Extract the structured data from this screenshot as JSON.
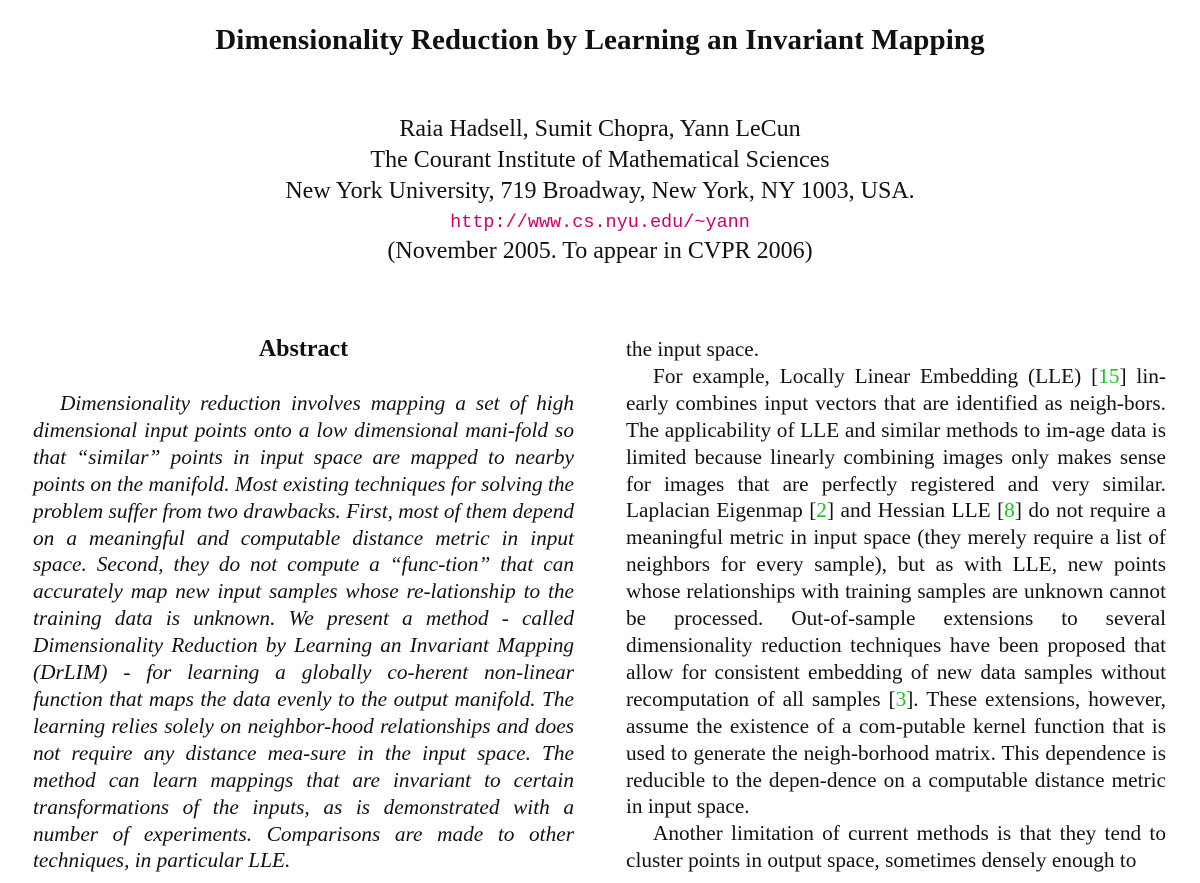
{
  "paper": {
    "title": "Dimensionality Reduction by Learning an Invariant Mapping",
    "authors": "Raia Hadsell, Sumit Chopra, Yann LeCun",
    "affiliation_1": "The Courant Institute of Mathematical Sciences",
    "affiliation_2": "New York University, 719 Broadway, New York, NY 1003, USA.",
    "url": "http://www.cs.nyu.edu/~yann",
    "date_note": "(November 2005. To appear in CVPR 2006)"
  },
  "abstract": {
    "heading": "Abstract",
    "text": "Dimensionality reduction involves mapping a set of high dimensional input points onto a low dimensional mani-fold so that “similar” points in input space are mapped to nearby points on the manifold. Most existing techniques for solving the problem suffer from two drawbacks. First, most of them depend on a meaningful and computable distance metric in input space. Second, they do not compute a “func-tion” that can accurately map new input samples whose re-lationship to the training data is unknown. We present a method - called Dimensionality Reduction by Learning an Invariant Mapping (DrLIM) - for learning a globally co-herent non-linear function that maps the data evenly to the output manifold. The learning relies solely on neighbor-hood relationships and does not require any distance mea-sure in the input space. The method can learn mappings that are invariant to certain transformations of the inputs, as is demonstrated with a number of experiments. Comparisons are made to other techniques, in particular LLE."
  },
  "right_column": {
    "continuation": "the input space.",
    "p1": {
      "s1": "For example, Locally Linear Embedding (LLE) [",
      "c1": "15",
      "s2": "] lin-early combines input vectors that are identified as neigh-bors. The applicability of LLE and similar methods to im-age data is limited because linearly combining images only makes sense for images that are perfectly registered and very similar. Laplacian Eigenmap [",
      "c2": "2",
      "s3": "] and Hessian LLE [",
      "c3": "8",
      "s4": "] do not require a meaningful metric in input space (they merely require a list of neighbors for every sample), but as with LLE, new points whose relationships with training samples are unknown cannot be processed. Out-of-sample extensions to several dimensionality reduction techniques have been proposed that allow for consistent embedding of new data samples without recomputation of all samples [",
      "c4": "3",
      "s5": "]. These extensions, however, assume the existence of a com-putable kernel function that is used to generate the neigh-borhood matrix. This dependence is reducible to the depen-dence on a computable distance metric in input space."
    },
    "p2": "Another limitation of current methods is that they tend to cluster points in output space, sometimes densely enough to"
  },
  "colors": {
    "url": "#d0006a",
    "citation": "#1ec21e",
    "text": "#111111"
  }
}
